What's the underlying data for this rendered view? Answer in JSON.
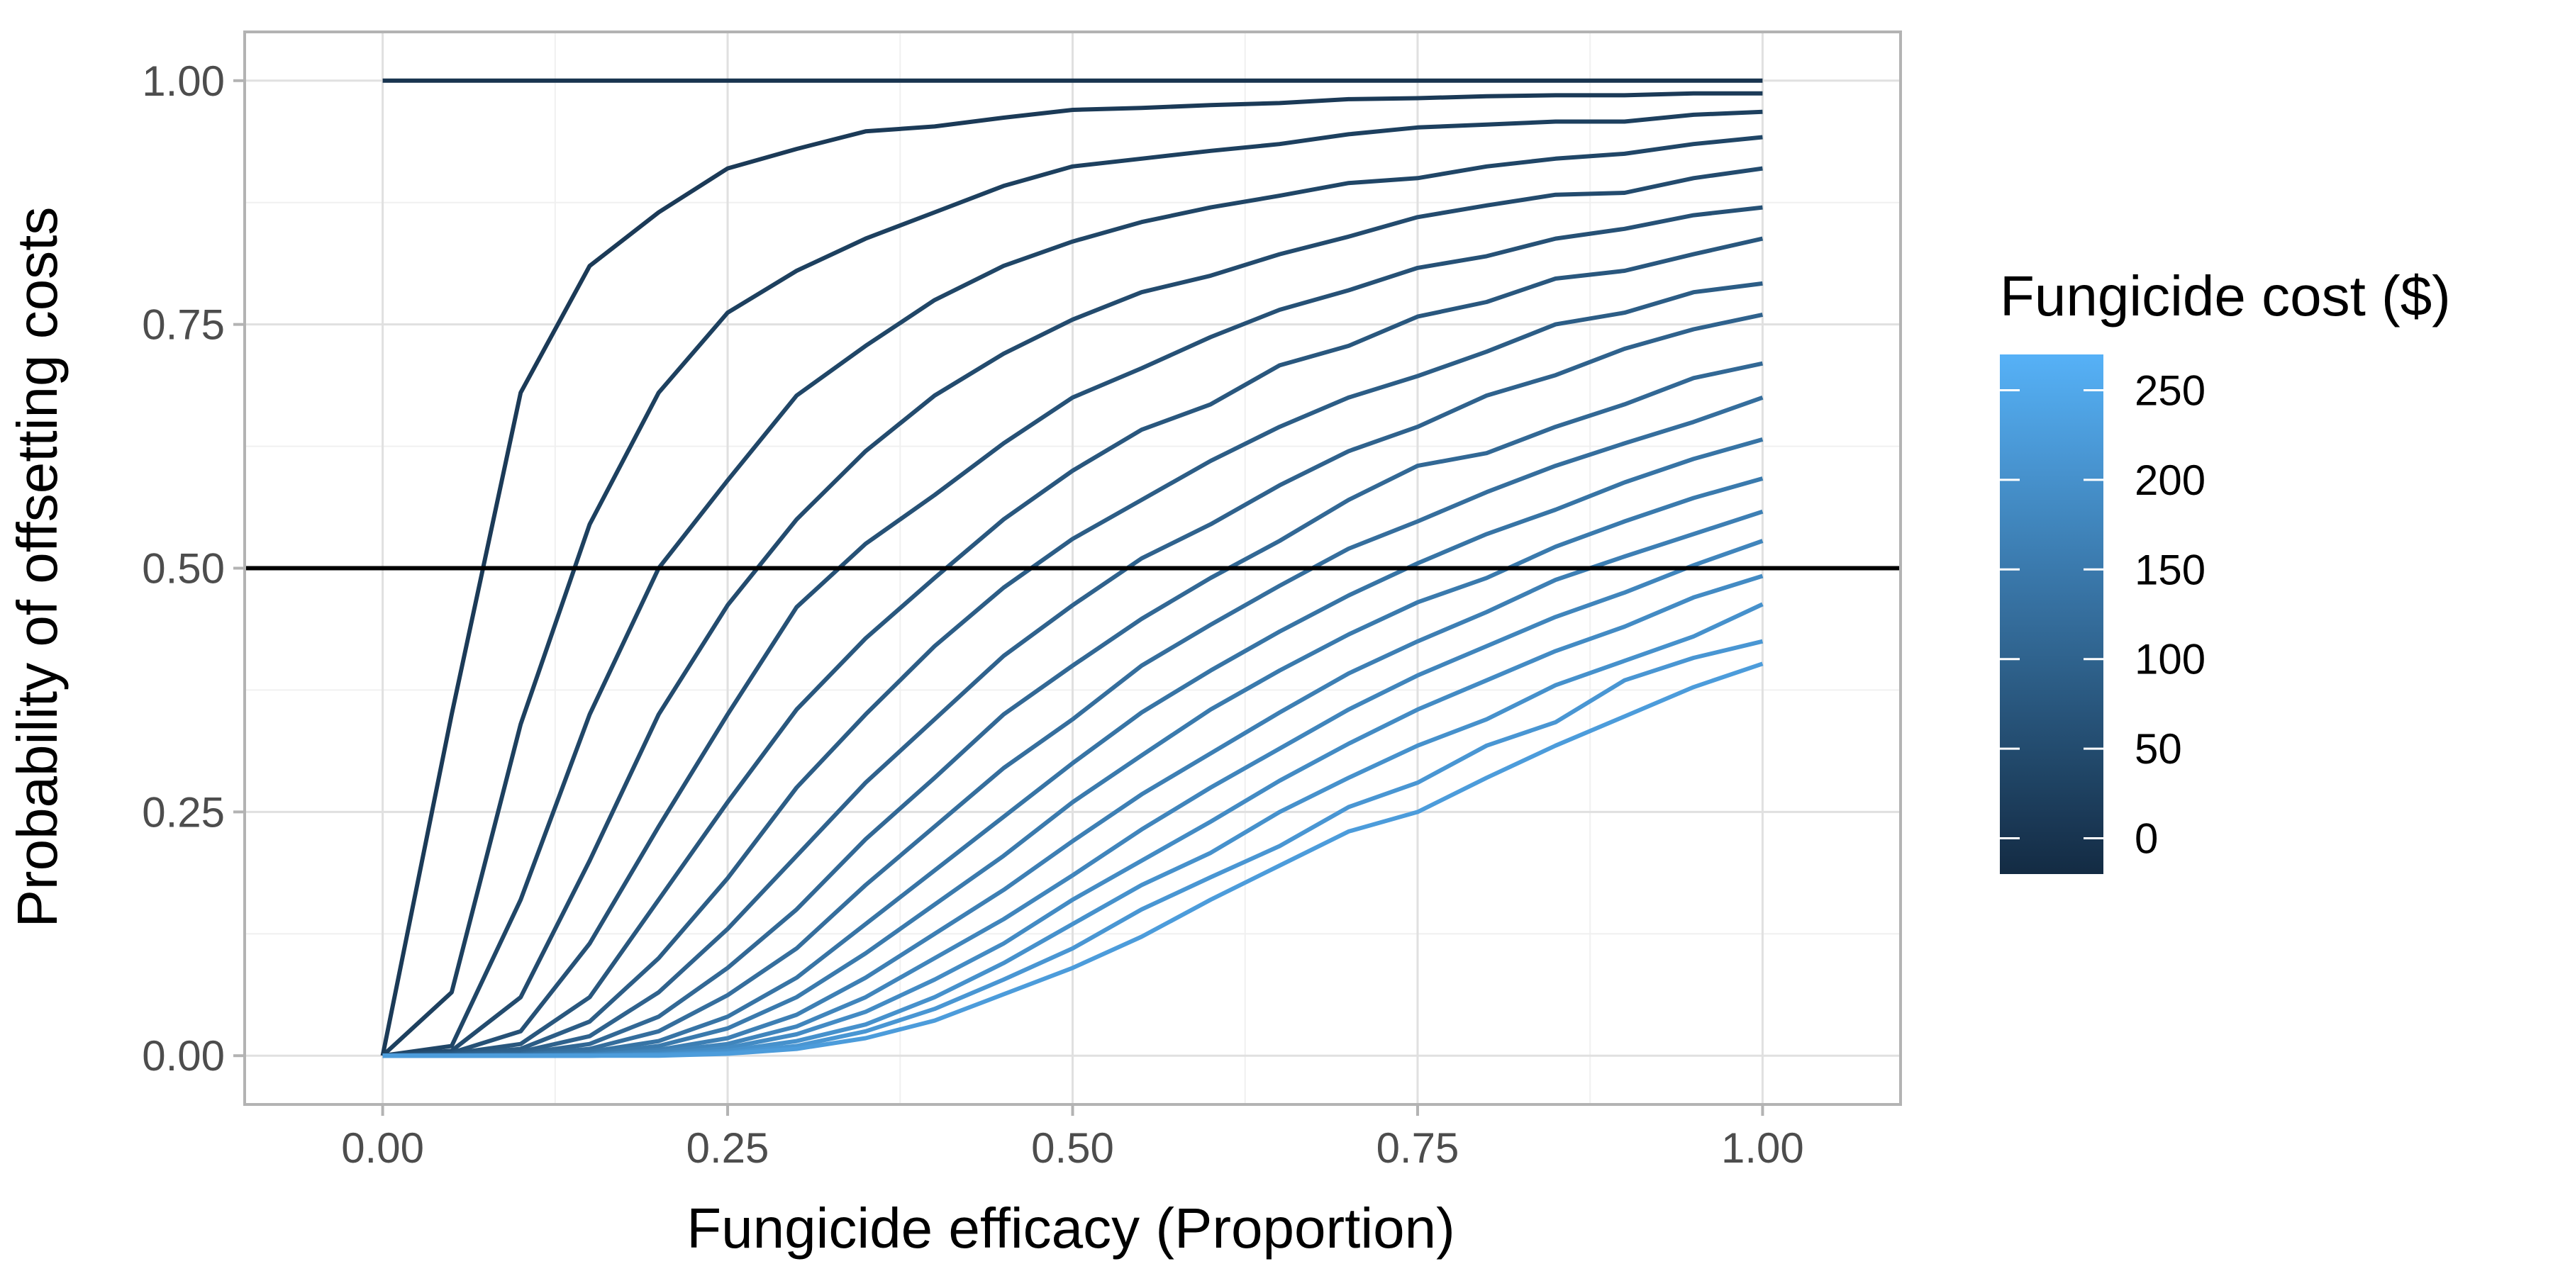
{
  "chart_data": {
    "type": "line",
    "title": "",
    "xlabel": "Fungicide efficacy (Proportion)",
    "ylabel": "Probability of offsetting costs",
    "xlim": [
      -0.1,
      1.1
    ],
    "ylim": [
      -0.05,
      1.05
    ],
    "x_ticks": [
      0,
      0.25,
      0.5,
      0.75,
      1
    ],
    "x_tick_labels": [
      "0.00",
      "0.25",
      "0.50",
      "0.75",
      "1.00"
    ],
    "y_ticks": [
      0,
      0.25,
      0.5,
      0.75,
      1
    ],
    "y_tick_labels": [
      "0.00",
      "0.25",
      "0.50",
      "0.75",
      "1.00"
    ],
    "grid": true,
    "reference_line": {
      "y": 0.5,
      "color": "#000000"
    },
    "legend": {
      "title": "Fungicide cost ($)",
      "placement": "right",
      "min": -20,
      "max": 270,
      "ticks": [
        0,
        50,
        100,
        150,
        200,
        250
      ],
      "tick_labels": [
        "0",
        "50",
        "100",
        "150",
        "200",
        "250"
      ],
      "color_low": "#132B43",
      "color_high": "#56B1F7"
    },
    "x": [
      0,
      0.05,
      0.1,
      0.15,
      0.2,
      0.25,
      0.3,
      0.35,
      0.4,
      0.45,
      0.5,
      0.55,
      0.6,
      0.65,
      0.7,
      0.75,
      0.8,
      0.85,
      0.9,
      0.95,
      1
    ],
    "series": [
      {
        "cost": 0,
        "values": [
          1,
          1,
          1,
          1,
          1,
          1,
          1,
          1,
          1,
          1,
          1,
          1,
          1,
          1,
          1,
          1,
          1,
          1,
          1,
          1,
          1
        ]
      },
      {
        "cost": 12.5,
        "values": [
          0,
          0.35,
          0.68,
          0.81,
          0.865,
          0.91,
          0.93,
          0.948,
          0.953,
          0.962,
          0.97,
          0.972,
          0.975,
          0.977,
          0.981,
          0.982,
          0.984,
          0.985,
          0.985,
          0.987,
          0.987
        ]
      },
      {
        "cost": 25,
        "values": [
          0,
          0.065,
          0.34,
          0.545,
          0.68,
          0.762,
          0.805,
          0.838,
          0.865,
          0.892,
          0.912,
          0.92,
          0.928,
          0.935,
          0.945,
          0.952,
          0.955,
          0.958,
          0.958,
          0.965,
          0.968
        ]
      },
      {
        "cost": 37.5,
        "values": [
          0,
          0.01,
          0.16,
          0.35,
          0.5,
          0.59,
          0.677,
          0.728,
          0.775,
          0.81,
          0.835,
          0.855,
          0.87,
          0.882,
          0.895,
          0.9,
          0.912,
          0.92,
          0.925,
          0.935,
          0.942
        ]
      },
      {
        "cost": 50,
        "values": [
          0,
          0.005,
          0.06,
          0.2,
          0.35,
          0.462,
          0.55,
          0.62,
          0.677,
          0.72,
          0.755,
          0.783,
          0.8,
          0.822,
          0.84,
          0.86,
          0.872,
          0.883,
          0.885,
          0.9,
          0.91
        ]
      },
      {
        "cost": 62.5,
        "values": [
          0,
          0.003,
          0.025,
          0.115,
          0.235,
          0.35,
          0.46,
          0.525,
          0.575,
          0.628,
          0.675,
          0.705,
          0.737,
          0.765,
          0.785,
          0.808,
          0.82,
          0.838,
          0.848,
          0.862,
          0.87
        ]
      },
      {
        "cost": 75,
        "values": [
          0,
          0.002,
          0.012,
          0.06,
          0.16,
          0.26,
          0.355,
          0.428,
          0.49,
          0.55,
          0.6,
          0.642,
          0.668,
          0.708,
          0.728,
          0.758,
          0.773,
          0.797,
          0.805,
          0.822,
          0.838
        ]
      },
      {
        "cost": 87.5,
        "values": [
          0,
          0.001,
          0.007,
          0.035,
          0.1,
          0.182,
          0.275,
          0.35,
          0.42,
          0.48,
          0.53,
          0.57,
          0.61,
          0.645,
          0.675,
          0.697,
          0.722,
          0.75,
          0.762,
          0.783,
          0.792
        ]
      },
      {
        "cost": 100,
        "values": [
          0,
          0.001,
          0.004,
          0.02,
          0.065,
          0.13,
          0.205,
          0.28,
          0.345,
          0.41,
          0.462,
          0.51,
          0.545,
          0.585,
          0.62,
          0.645,
          0.677,
          0.698,
          0.725,
          0.745,
          0.76
        ]
      },
      {
        "cost": 112.5,
        "values": [
          0,
          0.0005,
          0.002,
          0.012,
          0.04,
          0.09,
          0.15,
          0.222,
          0.285,
          0.35,
          0.4,
          0.448,
          0.49,
          0.528,
          0.57,
          0.605,
          0.618,
          0.645,
          0.668,
          0.695,
          0.71
        ]
      },
      {
        "cost": 125,
        "values": [
          0,
          0,
          0.001,
          0.007,
          0.025,
          0.062,
          0.11,
          0.175,
          0.235,
          0.295,
          0.345,
          0.4,
          0.442,
          0.482,
          0.52,
          0.548,
          0.578,
          0.605,
          0.628,
          0.65,
          0.675
        ]
      },
      {
        "cost": 137.5,
        "values": [
          0,
          0,
          0.001,
          0.004,
          0.015,
          0.04,
          0.08,
          0.135,
          0.19,
          0.245,
          0.3,
          0.352,
          0.395,
          0.435,
          0.472,
          0.505,
          0.535,
          0.56,
          0.588,
          0.612,
          0.632
        ]
      },
      {
        "cost": 150,
        "values": [
          0,
          0,
          0,
          0.002,
          0.01,
          0.028,
          0.06,
          0.105,
          0.155,
          0.205,
          0.26,
          0.308,
          0.355,
          0.395,
          0.432,
          0.465,
          0.49,
          0.522,
          0.548,
          0.572,
          0.592
        ]
      },
      {
        "cost": 162.5,
        "values": [
          0,
          0,
          0,
          0.001,
          0.006,
          0.018,
          0.042,
          0.08,
          0.125,
          0.17,
          0.22,
          0.268,
          0.31,
          0.352,
          0.392,
          0.425,
          0.455,
          0.488,
          0.512,
          0.535,
          0.558
        ]
      },
      {
        "cost": 175,
        "values": [
          0,
          0,
          0,
          0.001,
          0.004,
          0.012,
          0.03,
          0.06,
          0.1,
          0.14,
          0.185,
          0.232,
          0.275,
          0.315,
          0.355,
          0.39,
          0.42,
          0.45,
          0.475,
          0.503,
          0.528
        ]
      },
      {
        "cost": 187.5,
        "values": [
          0,
          0,
          0,
          0,
          0.002,
          0.008,
          0.022,
          0.045,
          0.078,
          0.115,
          0.16,
          0.2,
          0.24,
          0.282,
          0.32,
          0.355,
          0.385,
          0.415,
          0.44,
          0.47,
          0.492
        ]
      },
      {
        "cost": 200,
        "values": [
          0,
          0,
          0,
          0,
          0.001,
          0.005,
          0.015,
          0.032,
          0.06,
          0.095,
          0.135,
          0.175,
          0.208,
          0.25,
          0.285,
          0.318,
          0.345,
          0.38,
          0.405,
          0.43,
          0.463
        ]
      },
      {
        "cost": 212.5,
        "values": [
          0,
          0,
          0,
          0,
          0.001,
          0.003,
          0.01,
          0.025,
          0.048,
          0.078,
          0.11,
          0.15,
          0.183,
          0.215,
          0.255,
          0.28,
          0.318,
          0.342,
          0.385,
          0.408,
          0.425
        ]
      },
      {
        "cost": 225,
        "values": [
          0,
          0,
          0,
          0,
          0,
          0.002,
          0.007,
          0.018,
          0.036,
          0.063,
          0.09,
          0.122,
          0.16,
          0.195,
          0.23,
          0.25,
          0.285,
          0.318,
          0.348,
          0.378,
          0.402
        ]
      }
    ]
  }
}
